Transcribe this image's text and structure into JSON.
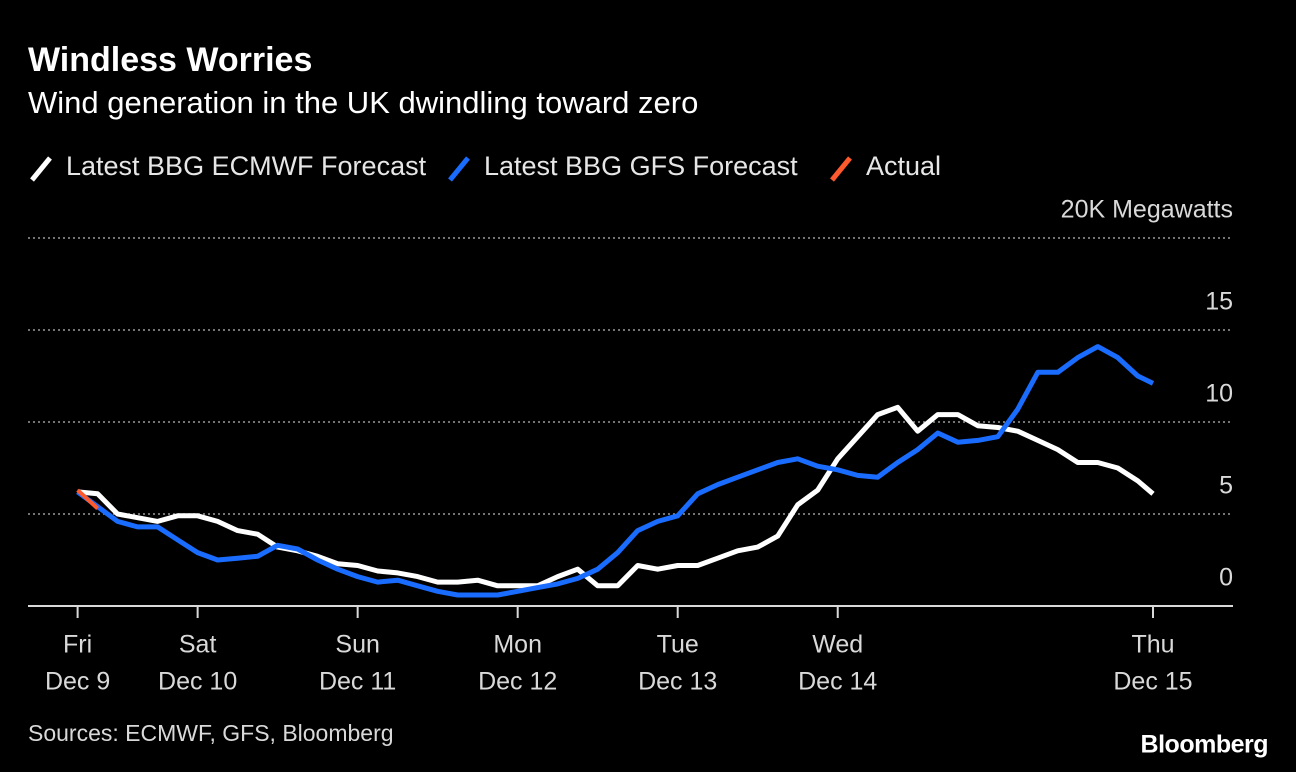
{
  "chart_data": {
    "type": "line",
    "title": "Windless Worries",
    "subtitle": "Wind generation in the UK dwindling toward zero",
    "source": "Sources: ECMWF, GFS, Bloomberg",
    "brand": "Bloomberg",
    "x": [
      9.25,
      9.375,
      9.5,
      9.625,
      9.75,
      9.875,
      10.0,
      10.125,
      10.25,
      10.375,
      10.5,
      10.625,
      10.75,
      10.875,
      11.0,
      11.125,
      11.25,
      11.375,
      11.5,
      11.625,
      11.75,
      11.875,
      12.0,
      12.125,
      12.25,
      12.375,
      12.5,
      12.625,
      12.75,
      12.875,
      13.0,
      13.125,
      13.25,
      13.375,
      13.5,
      13.625,
      13.75,
      13.875,
      14.0,
      14.125,
      14.25,
      14.375,
      14.5,
      14.625,
      14.75,
      14.875,
      15.0,
      15.125,
      15.25,
      15.375,
      15.5,
      15.625,
      15.75,
      15.875,
      15.97
    ],
    "series": [
      {
        "name": "Latest BBG ECMWF Forecast",
        "color": "#ffffff",
        "values": [
          6.2,
          6.1,
          5.0,
          4.8,
          4.6,
          4.9,
          4.9,
          4.6,
          4.1,
          3.9,
          3.2,
          3.0,
          2.7,
          2.3,
          2.2,
          1.9,
          1.8,
          1.6,
          1.3,
          1.3,
          1.4,
          1.1,
          1.1,
          1.1,
          1.6,
          2.0,
          1.1,
          1.1,
          2.2,
          2.0,
          2.2,
          2.2,
          2.6,
          3.0,
          3.2,
          3.8,
          5.5,
          6.3,
          8.0,
          9.2,
          10.4,
          10.8,
          9.5,
          10.4,
          10.4,
          9.8,
          9.7,
          9.5,
          9.0,
          8.5,
          7.8,
          7.8,
          7.5,
          6.8,
          6.1
        ]
      },
      {
        "name": "Latest BBG GFS Forecast",
        "color": "#1a6cff",
        "values": [
          6.2,
          5.4,
          4.6,
          4.3,
          4.3,
          3.6,
          2.9,
          2.5,
          2.6,
          2.7,
          3.3,
          3.1,
          2.5,
          2.0,
          1.6,
          1.3,
          1.4,
          1.1,
          0.8,
          0.6,
          0.6,
          0.6,
          0.8,
          1.0,
          1.2,
          1.5,
          2.0,
          2.9,
          4.1,
          4.6,
          4.9,
          6.1,
          6.6,
          7.0,
          7.4,
          7.8,
          8.0,
          7.6,
          7.4,
          7.1,
          7.0,
          7.8,
          8.5,
          9.4,
          8.9,
          9.0,
          9.2,
          10.7,
          12.7,
          12.7,
          13.5,
          14.1,
          13.5,
          12.5,
          12.1
        ]
      },
      {
        "name": "Actual",
        "color": "#ff5a2d",
        "values": [
          6.3,
          5.3,
          null,
          null,
          null,
          null,
          null,
          null,
          null,
          null,
          null,
          null,
          null,
          null,
          null,
          null,
          null,
          null,
          null,
          null,
          null,
          null,
          null,
          null,
          null,
          null,
          null,
          null,
          null,
          null,
          null,
          null,
          null,
          null,
          null,
          null,
          null,
          null,
          null,
          null,
          null,
          null,
          null,
          null,
          null,
          null,
          null,
          null,
          null,
          null,
          null,
          null,
          null,
          null,
          null
        ]
      }
    ],
    "xlim": [
      8.94,
      16.47
    ],
    "xticks": [
      {
        "value": 9.25,
        "label": "Fri",
        "sublabel": "Dec 9"
      },
      {
        "value": 10,
        "label": "Sat",
        "sublabel": "Dec 10"
      },
      {
        "value": 11,
        "label": "Sun",
        "sublabel": "Dec 11"
      },
      {
        "value": 12,
        "label": "Mon",
        "sublabel": "Dec 12"
      },
      {
        "value": 13,
        "label": "Tue",
        "sublabel": "Dec 13"
      },
      {
        "value": 14,
        "label": "Wed",
        "sublabel": "Dec 14"
      },
      {
        "value": 15.97,
        "label": "Thu",
        "sublabel": "Dec 15"
      }
    ],
    "ylim": [
      0,
      20
    ],
    "yticks": [
      0,
      5,
      10,
      15,
      {
        "value": 20,
        "label": "20K Megawatts"
      }
    ],
    "grid": true
  }
}
